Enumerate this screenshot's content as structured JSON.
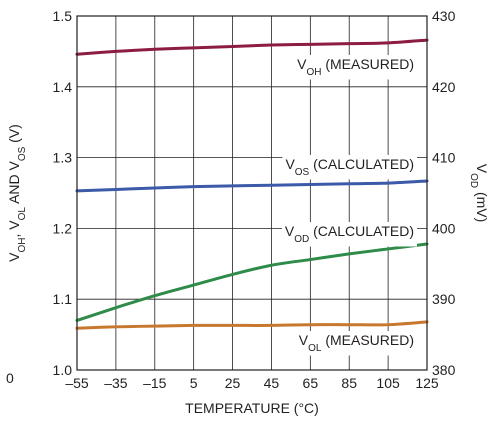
{
  "chart_data": {
    "type": "line",
    "x": [
      -55,
      -35,
      -15,
      5,
      25,
      45,
      65,
      85,
      105,
      125
    ],
    "x_ticks": [
      "–55",
      "–35",
      "–15",
      "5",
      "25",
      "45",
      "65",
      "85",
      "105",
      "125"
    ],
    "xlim": [
      -55,
      125
    ],
    "xlabel": "TEMPERATURE (°C)",
    "ylim": [
      1.0,
      1.5
    ],
    "y_ticks": [
      "1.0",
      "1.1",
      "1.2",
      "1.3",
      "1.4",
      "1.5"
    ],
    "ylabel": {
      "parts": [
        {
          "t": "V"
        },
        {
          "t": "OH",
          "sub": true
        },
        {
          "t": ", V"
        },
        {
          "t": "OL",
          "sub": true
        },
        {
          "t": " AND V"
        },
        {
          "t": "OS",
          "sub": true
        },
        {
          "t": " (V)"
        }
      ]
    },
    "y2lim": [
      380,
      430
    ],
    "y2_ticks": [
      "380",
      "390",
      "400",
      "410",
      "420",
      "430"
    ],
    "y2label": {
      "parts": [
        {
          "t": "V"
        },
        {
          "t": "OD",
          "sub": true
        },
        {
          "t": " (mV)"
        }
      ]
    },
    "grid": true,
    "series": [
      {
        "name": "VOH (MEASURED)",
        "label_parts": [
          {
            "t": "V"
          },
          {
            "t": "OH",
            "sub": true
          },
          {
            "t": " (MEASURED)"
          }
        ],
        "axis": "left",
        "color": "#8c1d40",
        "values": [
          1.446,
          1.45,
          1.453,
          1.455,
          1.457,
          1.459,
          1.46,
          1.461,
          1.462,
          1.466
        ]
      },
      {
        "name": "VOS (CALCULATED)",
        "label_parts": [
          {
            "t": "V"
          },
          {
            "t": "OS",
            "sub": true
          },
          {
            "t": " (CALCULATED)"
          }
        ],
        "axis": "left",
        "color": "#3b5aa8",
        "values": [
          1.253,
          1.255,
          1.257,
          1.259,
          1.26,
          1.261,
          1.262,
          1.263,
          1.264,
          1.267
        ]
      },
      {
        "name": "VOD (CALCULATED)",
        "label_parts": [
          {
            "t": "V"
          },
          {
            "t": "OD",
            "sub": true
          },
          {
            "t": " (CALCULATED)"
          }
        ],
        "axis": "right",
        "color": "#2e8b4a",
        "values": [
          387.0,
          388.8,
          390.5,
          392.0,
          393.5,
          394.8,
          395.6,
          396.4,
          397.1,
          397.8
        ]
      },
      {
        "name": "VOL (MEASURED)",
        "label_parts": [
          {
            "t": "V"
          },
          {
            "t": "OL",
            "sub": true
          },
          {
            "t": " (MEASURED)"
          }
        ],
        "axis": "left",
        "color": "#c8782e",
        "values": [
          1.059,
          1.061,
          1.062,
          1.063,
          1.063,
          1.063,
          1.064,
          1.064,
          1.064,
          1.068
        ]
      }
    ],
    "corner_label": "0"
  }
}
